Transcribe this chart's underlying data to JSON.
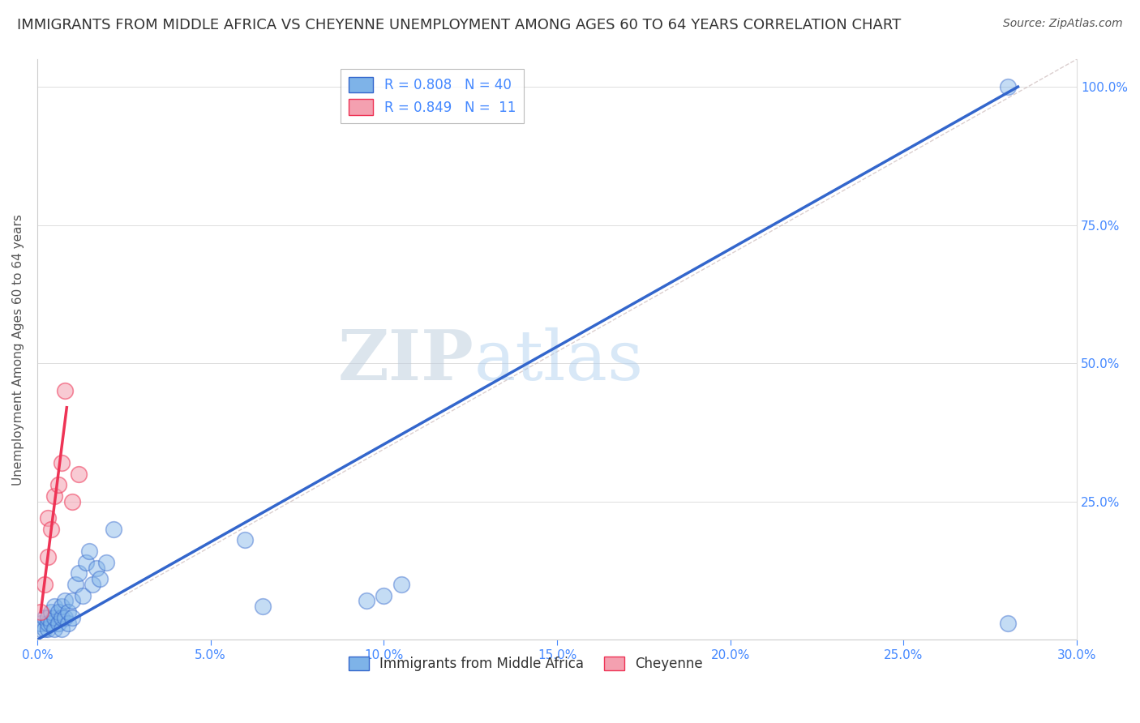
{
  "title": "IMMIGRANTS FROM MIDDLE AFRICA VS CHEYENNE UNEMPLOYMENT AMONG AGES 60 TO 64 YEARS CORRELATION CHART",
  "source": "Source: ZipAtlas.com",
  "ylabel": "Unemployment Among Ages 60 to 64 years",
  "xlabel": "",
  "xlim": [
    0.0,
    0.3
  ],
  "ylim": [
    0.0,
    1.05
  ],
  "xtick_labels": [
    "0.0%",
    "5.0%",
    "10.0%",
    "15.0%",
    "20.0%",
    "25.0%",
    "30.0%"
  ],
  "xtick_values": [
    0.0,
    0.05,
    0.1,
    0.15,
    0.2,
    0.25,
    0.3
  ],
  "ytick_labels": [
    "25.0%",
    "50.0%",
    "75.0%",
    "100.0%"
  ],
  "ytick_values": [
    0.25,
    0.5,
    0.75,
    1.0
  ],
  "R_blue": 0.808,
  "N_blue": 40,
  "R_pink": 0.849,
  "N_pink": 11,
  "blue_color": "#7EB3E8",
  "pink_color": "#F4A0B0",
  "blue_line_color": "#3366CC",
  "pink_line_color": "#EE3355",
  "legend_label_blue": "Immigrants from Middle Africa",
  "legend_label_pink": "Cheyenne",
  "blue_scatter_x": [
    0.001,
    0.001,
    0.002,
    0.002,
    0.003,
    0.003,
    0.003,
    0.004,
    0.004,
    0.005,
    0.005,
    0.005,
    0.006,
    0.006,
    0.007,
    0.007,
    0.007,
    0.008,
    0.008,
    0.009,
    0.009,
    0.01,
    0.01,
    0.011,
    0.012,
    0.013,
    0.014,
    0.015,
    0.016,
    0.017,
    0.018,
    0.02,
    0.022,
    0.06,
    0.065,
    0.095,
    0.1,
    0.105,
    0.28,
    0.28
  ],
  "blue_scatter_y": [
    0.02,
    0.03,
    0.02,
    0.04,
    0.02,
    0.03,
    0.04,
    0.03,
    0.05,
    0.02,
    0.04,
    0.06,
    0.03,
    0.05,
    0.02,
    0.04,
    0.06,
    0.04,
    0.07,
    0.03,
    0.05,
    0.04,
    0.07,
    0.1,
    0.12,
    0.08,
    0.14,
    0.16,
    0.1,
    0.13,
    0.11,
    0.14,
    0.2,
    0.18,
    0.06,
    0.07,
    0.08,
    0.1,
    0.03,
    1.0
  ],
  "pink_scatter_x": [
    0.001,
    0.002,
    0.003,
    0.003,
    0.004,
    0.005,
    0.006,
    0.007,
    0.008,
    0.01,
    0.012
  ],
  "pink_scatter_y": [
    0.05,
    0.1,
    0.15,
    0.22,
    0.2,
    0.26,
    0.28,
    0.32,
    0.45,
    0.25,
    0.3
  ],
  "blue_trendline_x": [
    0.0,
    0.283
  ],
  "blue_trendline_y": [
    0.0,
    1.0
  ],
  "pink_trendline_x": [
    0.001,
    0.0085
  ],
  "pink_trendline_y": [
    0.05,
    0.42
  ],
  "diag_line_x": [
    0.025,
    0.3
  ],
  "diag_line_y": [
    0.08,
    1.05
  ],
  "watermark_ZIP": "ZIP",
  "watermark_atlas": "atlas",
  "background_color": "#FFFFFF",
  "grid_color": "#DDDDDD",
  "title_fontsize": 13,
  "axis_label_fontsize": 11,
  "legend_fontsize": 12,
  "source_fontsize": 10
}
